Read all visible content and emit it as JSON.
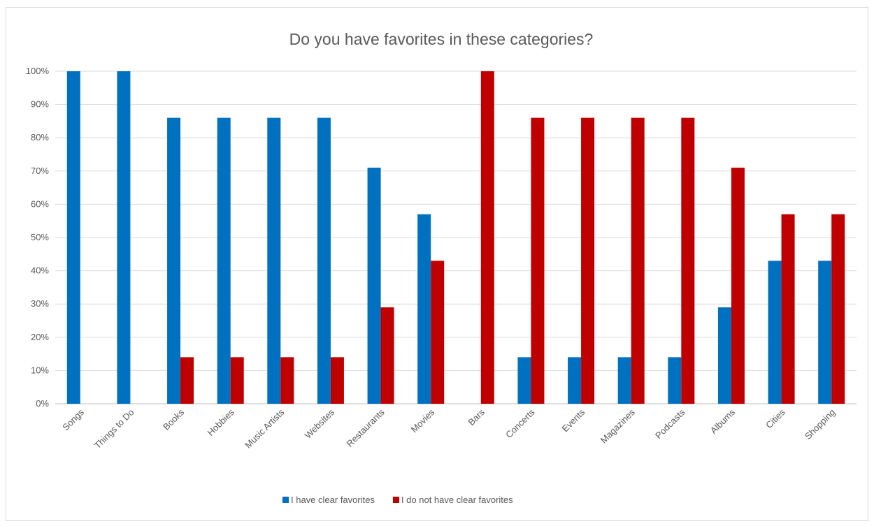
{
  "chart_data": {
    "type": "bar",
    "title": "Do you have favorites in these categories?",
    "xlabel": "",
    "ylabel": "",
    "ylim": [
      0,
      100
    ],
    "y_ticks": [
      "0%",
      "10%",
      "20%",
      "30%",
      "40%",
      "50%",
      "60%",
      "70%",
      "80%",
      "90%",
      "100%"
    ],
    "grid": true,
    "legend_position": "bottom",
    "categories": [
      "Songs",
      "Things to Do",
      "Books",
      "Hobbies",
      "Music Artists",
      "Websites",
      "Restaurants",
      "Movies",
      "Bars",
      "Concerts",
      "Events",
      "Magazines",
      "Podcasts",
      "Albums",
      "Cities",
      "Shopping"
    ],
    "series": [
      {
        "name": "I have clear favorites",
        "color": "#0070c0",
        "values": [
          100,
          100,
          86,
          86,
          86,
          86,
          71,
          57,
          0,
          14,
          14,
          14,
          14,
          29,
          43,
          43
        ]
      },
      {
        "name": "I do not have clear favorites",
        "color": "#c00000",
        "values": [
          0,
          0,
          14,
          14,
          14,
          14,
          29,
          43,
          100,
          86,
          86,
          86,
          86,
          71,
          57,
          57
        ]
      }
    ]
  }
}
